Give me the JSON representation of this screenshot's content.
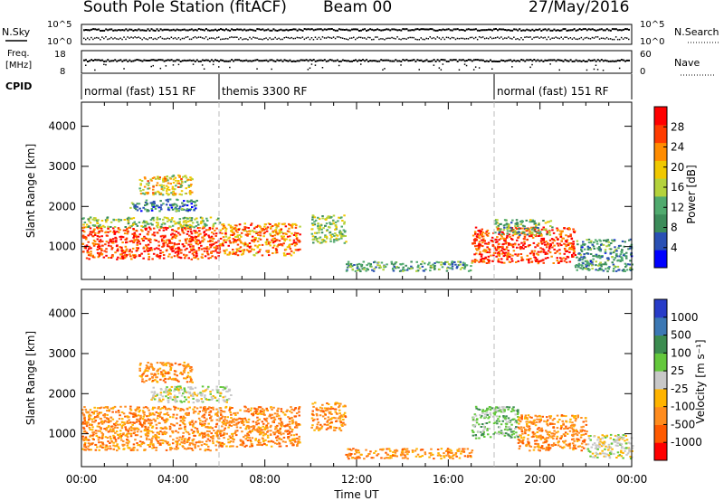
{
  "header": {
    "station": "South Pole Station (fitACF)",
    "beam": "Beam 00",
    "date": "27/May/2016"
  },
  "noise_panel": {
    "left_label": "N.Sky",
    "left_ticks": [
      "10^5",
      "10^0"
    ],
    "right_ticks": [
      "10^5",
      "10^0"
    ],
    "right_label": "N.Search"
  },
  "freq_panel": {
    "left_label_line1": "Freq.",
    "left_label_line2": "[MHz]",
    "left_ticks": [
      "18",
      "8"
    ],
    "right_ticks": [
      "60",
      "0"
    ],
    "right_label": "Nave"
  },
  "cpid_panel": {
    "label": "CPID",
    "segments": [
      {
        "text": "normal (fast) 151 RF",
        "start_hour": 0,
        "end_hour": 6
      },
      {
        "text": "themis 3300 RF",
        "start_hour": 6,
        "end_hour": 18
      },
      {
        "text": "normal (fast) 151 RF",
        "start_hour": 18,
        "end_hour": 24
      }
    ]
  },
  "colors": {
    "power_scale": [
      "#0000ff",
      "#2a50b4",
      "#3c8c5a",
      "#50aa6e",
      "#b4d23c",
      "#f0c800",
      "#ff8c00",
      "#ff3c00",
      "#ff0000"
    ],
    "velocity_scale": [
      "#ff0000",
      "#ff5a00",
      "#ff8c1e",
      "#ffb400",
      "#c8c8c8",
      "#64c83c",
      "#3c8c50",
      "#3c78b4",
      "#283cc8"
    ]
  },
  "chart_data": [
    {
      "type": "heatmap",
      "title": "",
      "quantity": "Power",
      "xlabel": "",
      "ylabel": "Slant Range [km]",
      "xlim_hours": [
        0,
        24
      ],
      "ylim": [
        180,
        4600
      ],
      "y_ticks": [
        "1000",
        "2000",
        "3000",
        "4000"
      ],
      "colorbar": {
        "label": "Power [dB]",
        "ticks": [
          "4",
          "8",
          "12",
          "16",
          "20",
          "24",
          "28"
        ],
        "range": [
          0,
          30
        ]
      },
      "regions": [
        {
          "start_hour": 0.0,
          "end_hour": 6.0,
          "range_min_km": 700,
          "range_max_km": 1500,
          "value_db": 26
        },
        {
          "start_hour": 0.0,
          "end_hour": 6.0,
          "range_min_km": 1500,
          "range_max_km": 1750,
          "value_db": 14
        },
        {
          "start_hour": 2.0,
          "end_hour": 5.0,
          "range_min_km": 1900,
          "range_max_km": 2200,
          "value_db": 8
        },
        {
          "start_hour": 2.5,
          "end_hour": 4.8,
          "range_min_km": 2300,
          "range_max_km": 2800,
          "value_db": 18
        },
        {
          "start_hour": 6.0,
          "end_hour": 9.5,
          "range_min_km": 800,
          "range_max_km": 1600,
          "value_db": 22
        },
        {
          "start_hour": 10.0,
          "end_hour": 11.5,
          "range_min_km": 1100,
          "range_max_km": 1800,
          "value_db": 14
        },
        {
          "start_hour": 11.5,
          "end_hour": 17.0,
          "range_min_km": 400,
          "range_max_km": 650,
          "value_db": 10
        },
        {
          "start_hour": 17.0,
          "end_hour": 21.5,
          "range_min_km": 600,
          "range_max_km": 1500,
          "value_db": 26
        },
        {
          "start_hour": 18.0,
          "end_hour": 20.5,
          "range_min_km": 1300,
          "range_max_km": 1700,
          "value_db": 12
        },
        {
          "start_hour": 21.5,
          "end_hour": 24.0,
          "range_min_km": 400,
          "range_max_km": 1200,
          "value_db": 9
        }
      ]
    },
    {
      "type": "heatmap",
      "title": "",
      "quantity": "Velocity",
      "xlabel": "Time UT",
      "ylabel": "Slant Range [km]",
      "xlim_hours": [
        0,
        24
      ],
      "ylim": [
        180,
        4600
      ],
      "x_ticks": [
        "00:00",
        "04:00",
        "08:00",
        "12:00",
        "16:00",
        "20:00",
        "00:00"
      ],
      "y_ticks": [
        "1000",
        "2000",
        "3000",
        "4000"
      ],
      "colorbar": {
        "label": "Velocity [m s⁻¹]",
        "ticks": [
          "1000",
          "500",
          "100",
          "25",
          "-25",
          "-100",
          "-500",
          "-1000"
        ]
      },
      "regions": [
        {
          "start_hour": 0.0,
          "end_hour": 6.0,
          "range_min_km": 600,
          "range_max_km": 1700,
          "value_class": "-100"
        },
        {
          "start_hour": 3.0,
          "end_hour": 6.5,
          "range_min_km": 1800,
          "range_max_km": 2200,
          "value_class": "25"
        },
        {
          "start_hour": 2.5,
          "end_hour": 4.8,
          "range_min_km": 2300,
          "range_max_km": 2800,
          "value_class": "-100"
        },
        {
          "start_hour": 6.0,
          "end_hour": 9.5,
          "range_min_km": 700,
          "range_max_km": 1700,
          "value_class": "-100"
        },
        {
          "start_hour": 10.0,
          "end_hour": 11.5,
          "range_min_km": 1100,
          "range_max_km": 1800,
          "value_class": "-100"
        },
        {
          "start_hour": 11.5,
          "end_hour": 17.0,
          "range_min_km": 400,
          "range_max_km": 650,
          "value_class": "-100"
        },
        {
          "start_hour": 17.0,
          "end_hour": 19.0,
          "range_min_km": 900,
          "range_max_km": 1700,
          "value_class": "100"
        },
        {
          "start_hour": 19.0,
          "end_hour": 22.0,
          "range_min_km": 600,
          "range_max_km": 1500,
          "value_class": "-100"
        },
        {
          "start_hour": 22.0,
          "end_hour": 24.0,
          "range_min_km": 400,
          "range_max_km": 1000,
          "value_class": "25"
        }
      ]
    }
  ]
}
